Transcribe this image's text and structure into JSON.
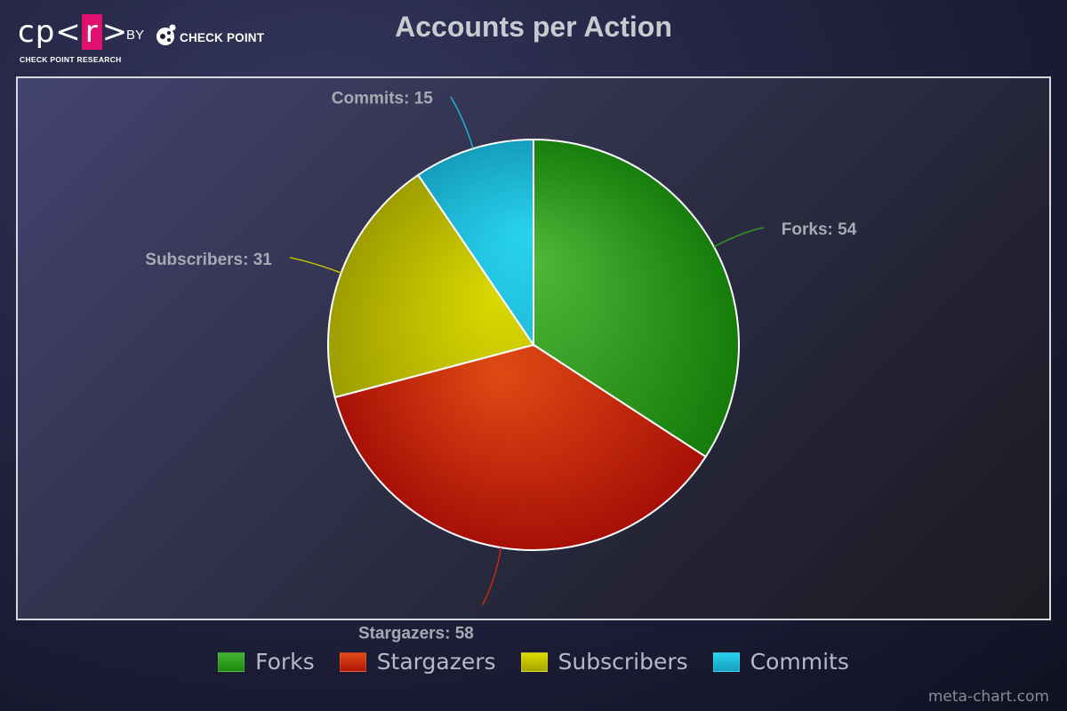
{
  "header": {
    "logo_cpr": "cp<r>",
    "logo_sub": "CHECK POINT RESEARCH",
    "by": "BY",
    "brand": "CHECK POINT"
  },
  "chart_data": {
    "type": "pie",
    "title": "Accounts per Action",
    "categories": [
      "Forks",
      "Stargazers",
      "Subscribers",
      "Commits"
    ],
    "values": [
      54,
      58,
      31,
      15
    ],
    "data_labels": [
      "Forks: 54",
      "Stargazers: 58",
      "Subscribers: 31",
      "Commits: 15"
    ],
    "colors": [
      "#2f9a1f",
      "#c8280f",
      "#c8c400",
      "#17b4d4"
    ],
    "start_angle_deg": 0,
    "direction": "clockwise",
    "legend_position": "bottom"
  },
  "legend": {
    "items": [
      {
        "label": "Forks",
        "color": "#2f9a1f"
      },
      {
        "label": "Stargazers",
        "color": "#c8280f"
      },
      {
        "label": "Subscribers",
        "color": "#c8c400"
      },
      {
        "label": "Commits",
        "color": "#17b4d4"
      }
    ]
  },
  "watermark": "meta-chart.com"
}
